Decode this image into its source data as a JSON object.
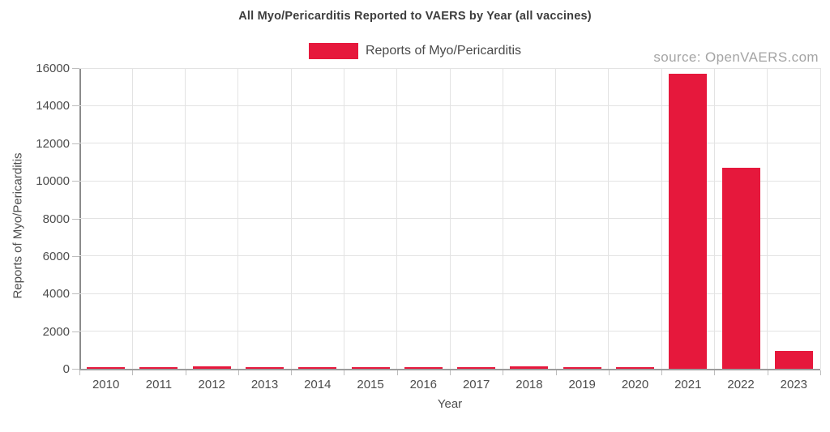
{
  "title": "All Myo/Pericarditis Reported to VAERS by Year (all vaccines)",
  "source_label": "source: OpenVAERS.com",
  "colors": {
    "bar": "#e6183c",
    "grid": "#e3e3e3",
    "axis": "#9d9d9d",
    "text": "#4d4d4d",
    "title_text": "#3d3d3d",
    "source_text": "#a4a4a4"
  },
  "chart_data": {
    "type": "bar",
    "categories": [
      "2010",
      "2011",
      "2012",
      "2013",
      "2014",
      "2015",
      "2016",
      "2017",
      "2018",
      "2019",
      "2020",
      "2021",
      "2022",
      "2023"
    ],
    "values": [
      90,
      95,
      120,
      95,
      90,
      70,
      80,
      85,
      140,
      80,
      75,
      15700,
      10700,
      950
    ],
    "title": "All Myo/Pericarditis Reported to VAERS by Year (all vaccines)",
    "xlabel": "Year",
    "ylabel": "Reports of Myo/Pericarditis",
    "legend_label": "Reports of Myo/Pericarditis",
    "legend_position": "top-center",
    "ylim": [
      0,
      16000
    ],
    "ytick_step": 2000,
    "yticks": [
      0,
      2000,
      4000,
      6000,
      8000,
      10000,
      12000,
      14000,
      16000
    ],
    "grid": true
  }
}
